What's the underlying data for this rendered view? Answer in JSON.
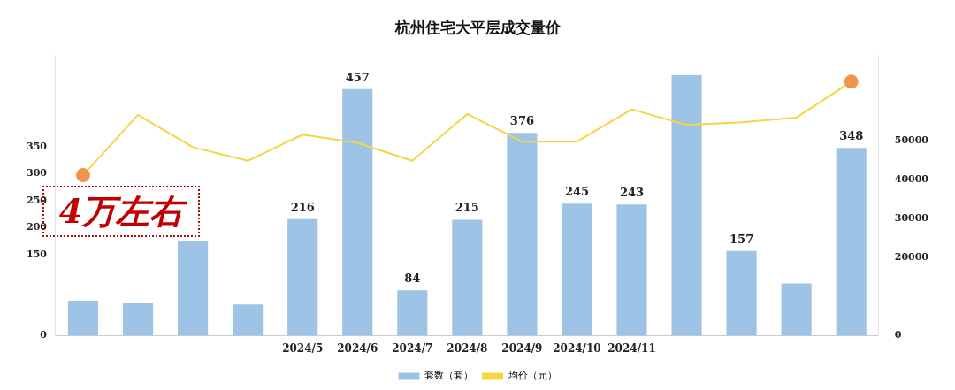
{
  "chart_data": {
    "type": "bar",
    "title": "杭州住宅大平层成交量价",
    "categories": [
      null,
      null,
      null,
      null,
      "2024/5",
      "2024/6",
      "2024/7",
      "2024/8",
      "2024/9",
      "2024/10",
      "2024/11",
      null,
      null,
      null,
      null
    ],
    "series": [
      {
        "name": "套数（套）",
        "color": "#9dc3e6",
        "values": [
          65,
          60,
          175,
          58,
          216,
          457,
          84,
          215,
          376,
          245,
          243,
          483,
          157,
          97,
          348
        ],
        "value_labels": [
          null,
          null,
          null,
          null,
          "216",
          "457",
          "84",
          "215",
          "376",
          "245",
          "243",
          null,
          "157",
          null,
          "348"
        ]
      },
      {
        "name": "均价（元）",
        "type": "line",
        "axis": "y2",
        "color": "#f5d547",
        "colors": [
          "#f0964a",
          null,
          null,
          null,
          null,
          null,
          null,
          null,
          null,
          null,
          null,
          null,
          null,
          null,
          "#f0964a"
        ],
        "values": [
          41200,
          56700,
          48400,
          44900,
          51600,
          49500,
          44900,
          56900,
          49800,
          49800,
          58100,
          54100,
          54800,
          56000,
          65200
        ]
      }
    ],
    "ylim": [
      0,
      520
    ],
    "yticks": [
      0,
      150,
      200,
      250,
      300,
      350
    ],
    "y2lim": [
      0,
      72000
    ],
    "y2ticks": [
      0,
      20000,
      30000,
      40000,
      50000
    ],
    "grid": false,
    "legend": "bottom",
    "annotations": [
      "4万左右"
    ]
  }
}
